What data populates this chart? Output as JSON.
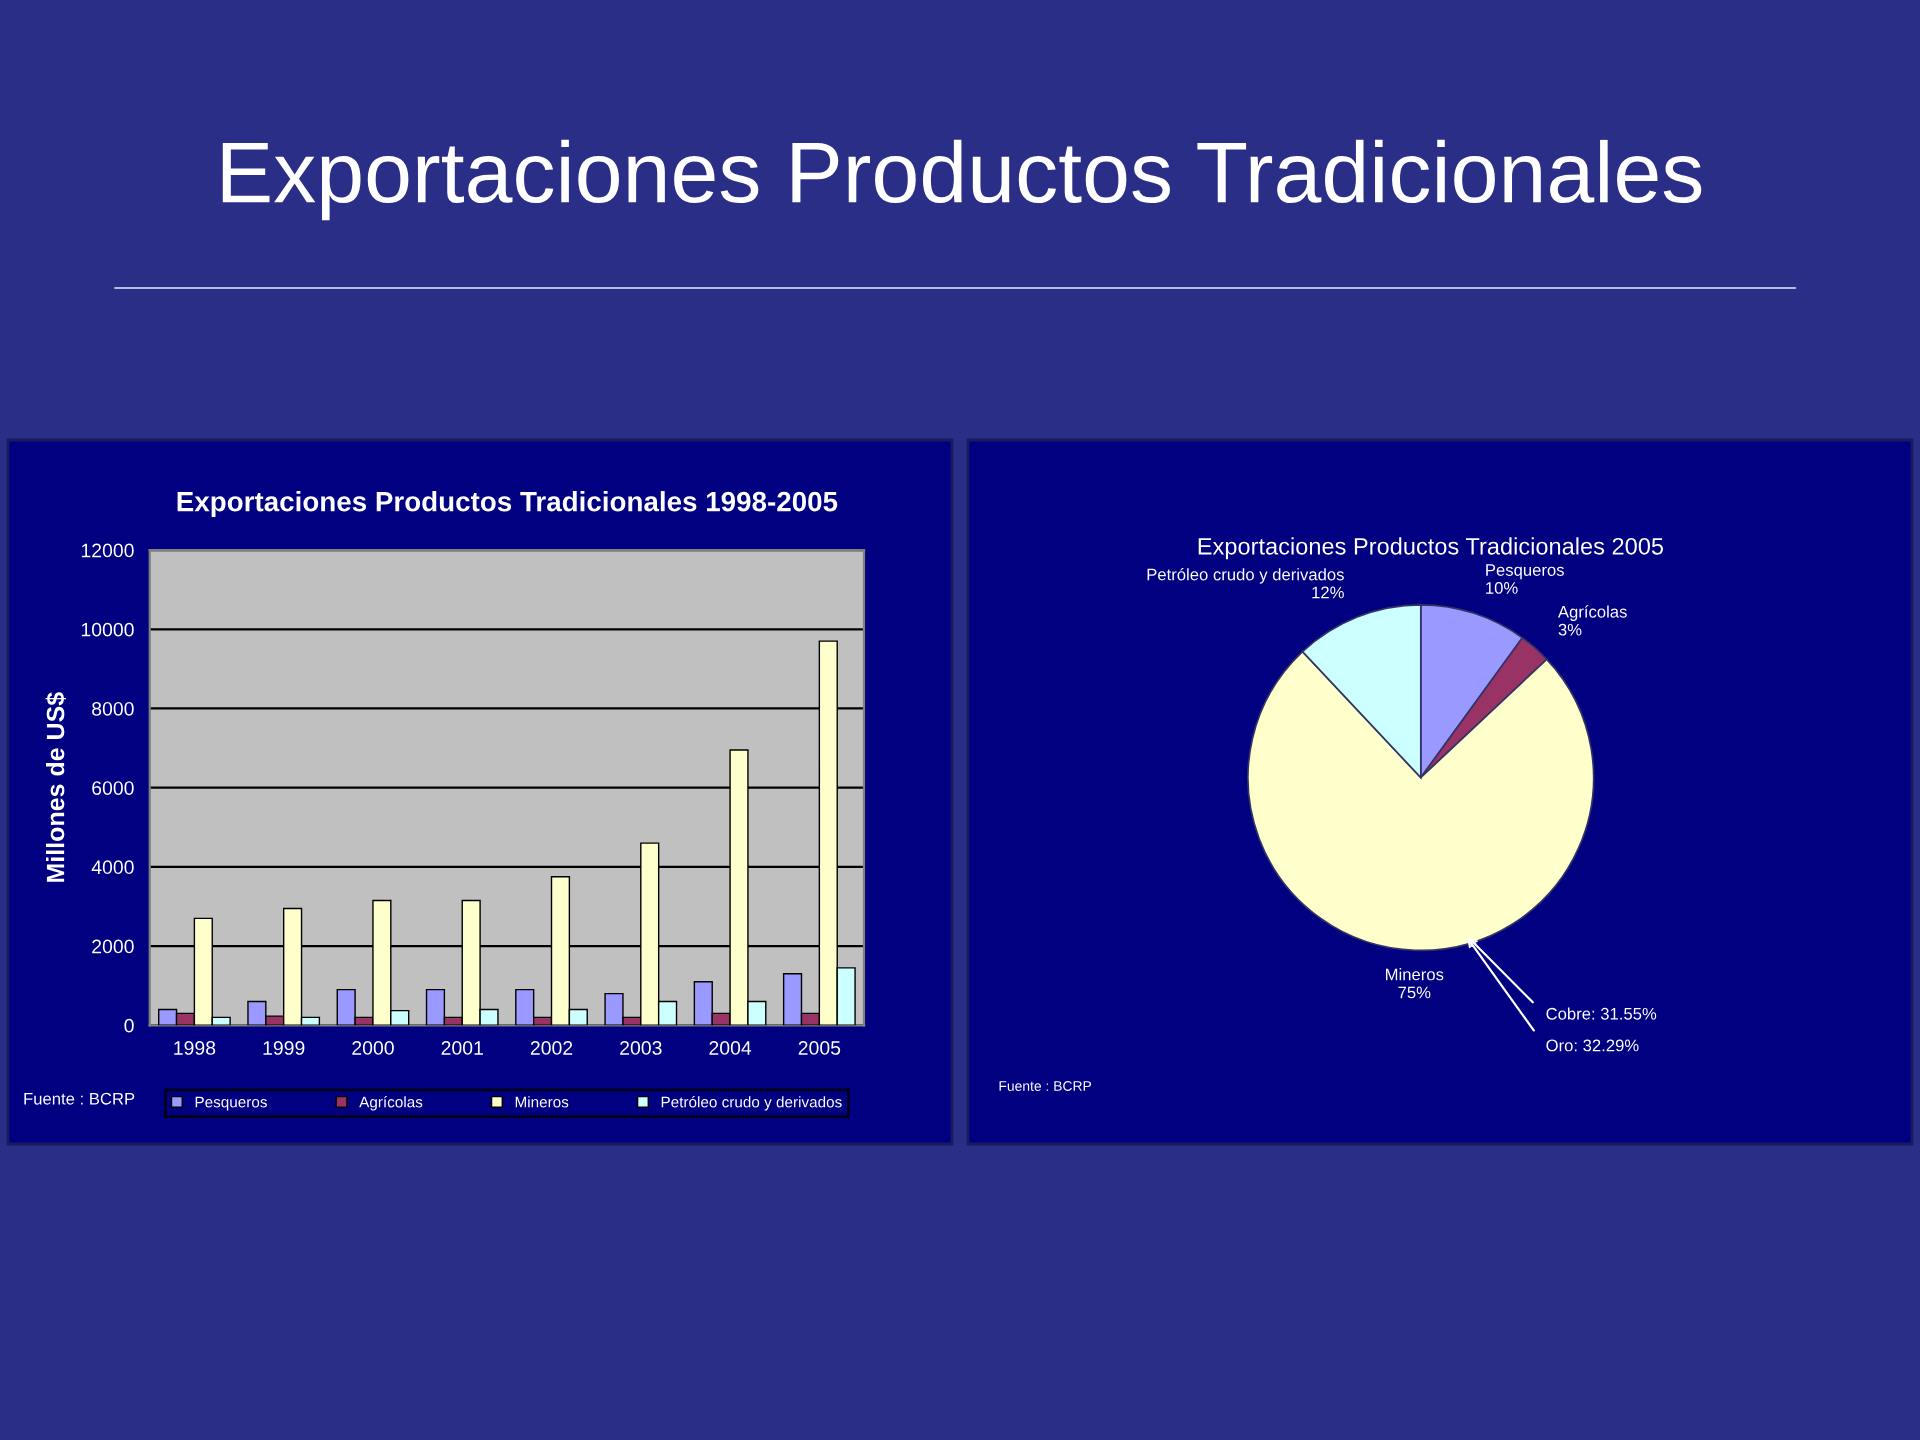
{
  "chart_data": [
    {
      "type": "other",
      "title": "Exportaciones Productos Tradicionales"
    },
    {
      "type": "bar",
      "title": "Exportaciones Productos Tradicionales 1998-2005",
      "ylabel": "Millones de US$",
      "categories": [
        "1998",
        "1999",
        "2000",
        "2001",
        "2002",
        "2003",
        "2004",
        "2005"
      ],
      "series": [
        {
          "name": "Pesqueros",
          "color": "#9999ff",
          "values": [
            400,
            600,
            900,
            900,
            900,
            800,
            1100,
            1300
          ]
        },
        {
          "name": "Agrícolas",
          "color": "#993366",
          "values": [
            300,
            230,
            200,
            200,
            200,
            200,
            300,
            300
          ]
        },
        {
          "name": "Mineros",
          "color": "#ffffcc",
          "values": [
            2700,
            2950,
            3150,
            3150,
            3750,
            4600,
            6950,
            9700
          ]
        },
        {
          "name": "Petróleo crudo y derivados",
          "color": "#ccffff",
          "values": [
            200,
            200,
            370,
            400,
            400,
            600,
            600,
            1450
          ]
        }
      ],
      "ylim": [
        0,
        12000
      ],
      "yticks": [
        0,
        2000,
        4000,
        6000,
        8000,
        10000,
        12000
      ],
      "grid": "y",
      "legend": "bottom",
      "annotations": [
        "Fuente : BCRP"
      ]
    },
    {
      "type": "pie",
      "title": "Exportaciones Productos Tradicionales 2005",
      "categories": [
        "Pesqueros",
        "Agrícolas",
        "Mineros",
        "Petróleo crudo y derivados"
      ],
      "values": [
        10,
        3,
        75,
        12
      ],
      "value_labels": [
        "10%",
        "3%",
        "75%",
        "12%"
      ],
      "colors": [
        "#9999ff",
        "#993366",
        "#ffffcc",
        "#ccffff"
      ],
      "annotations": [
        "Cobre: 31.55%",
        "Oro: 32.29%",
        "Fuente : BCRP"
      ]
    }
  ]
}
